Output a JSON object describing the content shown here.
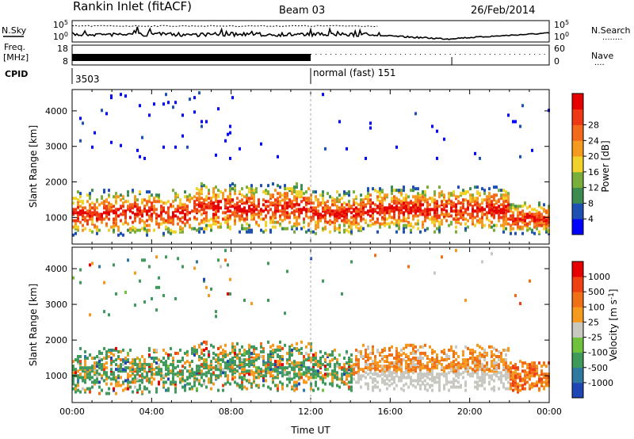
{
  "header": {
    "title": "Rankin Inlet (fitACF)",
    "beam": "Beam 03",
    "date": "26/Feb/2014"
  },
  "labels": {
    "nsky": "N.Sky",
    "nsearch": "N.Search",
    "nsearch_dots": "........",
    "freq_top": "Freq.",
    "freq_unit": "[MHz]",
    "nave": "Nave",
    "nave_dots": "....",
    "cpid": "CPID",
    "cpid_value": "3503",
    "mode": "normal (fast) 151",
    "nsky_ticks": [
      "10^5",
      "10^0"
    ],
    "nsearch_ticks": [
      "10^5",
      "10^0"
    ],
    "freq_ticks": [
      "18",
      "8"
    ],
    "nave_ticks": [
      "60",
      "0"
    ]
  },
  "chart_data": [
    {
      "type": "heatmap",
      "name": "power",
      "xlabel": "",
      "ylabel": "Slant Range [km]",
      "y_ticks": [
        1000,
        2000,
        3000,
        4000
      ],
      "ylim": [
        250,
        4600
      ],
      "xlim_hours": [
        0,
        24
      ],
      "colorbar": {
        "label": "Power [dB]",
        "ticks": [
          "4",
          "8",
          "12",
          "16",
          "20",
          "24",
          "28"
        ],
        "colors": [
          "#0000ff",
          "#1e50b4",
          "#3c8c50",
          "#7aae3a",
          "#f0d22a",
          "#f59a1e",
          "#f36a1a",
          "#ee3a14",
          "#e60000"
        ],
        "vmin": 0,
        "vmax": 32
      }
    },
    {
      "type": "heatmap",
      "name": "velocity",
      "xlabel": "Time UT",
      "ylabel": "Slant Range [km]",
      "y_ticks": [
        1000,
        2000,
        3000,
        4000
      ],
      "ylim": [
        250,
        4600
      ],
      "xlim_hours": [
        0,
        24
      ],
      "x_ticks": [
        "00:00",
        "04:00",
        "08:00",
        "12:00",
        "16:00",
        "20:00",
        "00:00"
      ],
      "colorbar": {
        "label": "Velocity [m s^-1]",
        "ticks": [
          "1000",
          "500",
          "100",
          "25",
          "-25",
          "-100",
          "-500",
          "-1000"
        ],
        "colors": [
          "#1e46b4",
          "#2f78a0",
          "#3f9a5c",
          "#6ec23c",
          "#c8c8c0",
          "#f59a1e",
          "#f07018",
          "#ee4010",
          "#e60000"
        ]
      }
    }
  ],
  "colors": {
    "power": [
      "#0000ff",
      "#1e50b4",
      "#3c8c50",
      "#7aae3a",
      "#f0d22a",
      "#f59a1e",
      "#f36a1a",
      "#ee3a14",
      "#e60000"
    ],
    "velocity": [
      "#1e46b4",
      "#2f78a0",
      "#3f9a5c",
      "#6ec23c",
      "#c8c8c0",
      "#f59a1e",
      "#f07018",
      "#ee4010",
      "#e60000"
    ]
  }
}
